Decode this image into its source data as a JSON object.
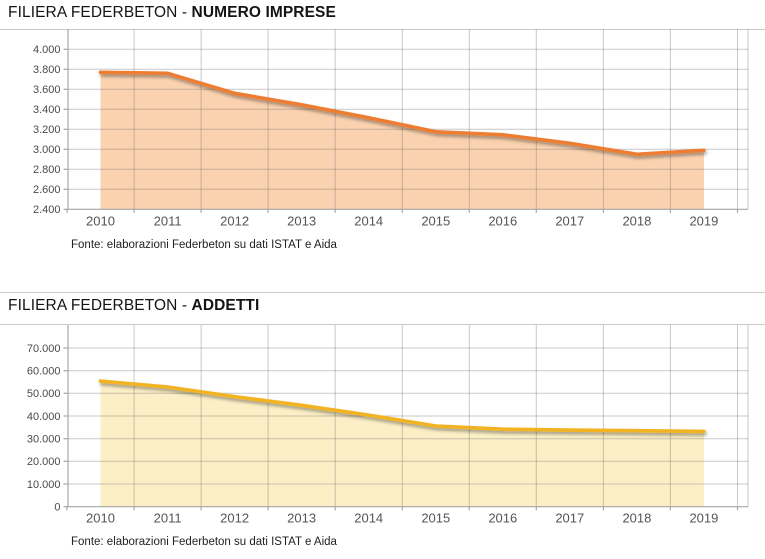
{
  "page": {
    "background_color": "#ffffff",
    "divider_color": "#c9c9c9"
  },
  "chart_data": [
    {
      "type": "area",
      "title": "FILIERA FEDERBETON - NUMERO IMPRESE",
      "title_regular": "FILIERA FEDERBETON - ",
      "title_bold": "NUMERO IMPRESE",
      "source": "Fonte: elaborazioni Federbeton su dati ISTAT e Aida",
      "categories": [
        "2010",
        "2011",
        "2012",
        "2013",
        "2014",
        "2015",
        "2016",
        "2017",
        "2018",
        "2019"
      ],
      "values": [
        3770,
        3760,
        3560,
        3445,
        3315,
        3175,
        3145,
        3060,
        2950,
        2990
      ],
      "xlabel": "",
      "ylabel": "",
      "ylim": [
        2400,
        4200
      ],
      "ytick_step": 200,
      "yticks": [
        {
          "value": 4000,
          "label": "4.000"
        },
        {
          "value": 3800,
          "label": "3.800"
        },
        {
          "value": 3600,
          "label": "3.600"
        },
        {
          "value": 3400,
          "label": "3.400"
        },
        {
          "value": 3200,
          "label": "3.200"
        },
        {
          "value": 3000,
          "label": "3.000"
        },
        {
          "value": 2800,
          "label": "2.800"
        },
        {
          "value": 2600,
          "label": "2.600"
        },
        {
          "value": 2400,
          "label": "2.400"
        }
      ],
      "grid": true,
      "legend": "none",
      "line_color": "#ED7D31",
      "fill_color": "#FBD2AF"
    },
    {
      "type": "area",
      "title": "FILIERA FEDERBETON - ADDETTI",
      "title_regular": "FILIERA FEDERBETON - ",
      "title_bold": "ADDETTI",
      "source": "Fonte: elaborazioni Federbeton su dati ISTAT e Aida",
      "categories": [
        "2010",
        "2011",
        "2012",
        "2013",
        "2014",
        "2015",
        "2016",
        "2017",
        "2018",
        "2019"
      ],
      "values": [
        55400,
        52800,
        48500,
        44700,
        40400,
        35600,
        34200,
        33800,
        33500,
        33200
      ],
      "xlabel": "",
      "ylabel": "",
      "ylim": [
        0,
        80000
      ],
      "ytick_step": 10000,
      "yticks": [
        {
          "value": 70000,
          "label": "70.000"
        },
        {
          "value": 60000,
          "label": "60.000"
        },
        {
          "value": 50000,
          "label": "50.000"
        },
        {
          "value": 40000,
          "label": "40.000"
        },
        {
          "value": 30000,
          "label": "30.000"
        },
        {
          "value": 20000,
          "label": "20.000"
        },
        {
          "value": 10000,
          "label": "10.000"
        },
        {
          "value": 0,
          "label": "0"
        }
      ],
      "grid": true,
      "legend": "none",
      "line_color": "#F2B322",
      "fill_color": "#FCEFC6"
    }
  ],
  "style": {
    "gridline_color": "rgba(112,112,112,0.38)",
    "axis_color": "#a6a6a6",
    "tick_label_color": "#4a4a4a",
    "x_label_color": "#555555"
  }
}
